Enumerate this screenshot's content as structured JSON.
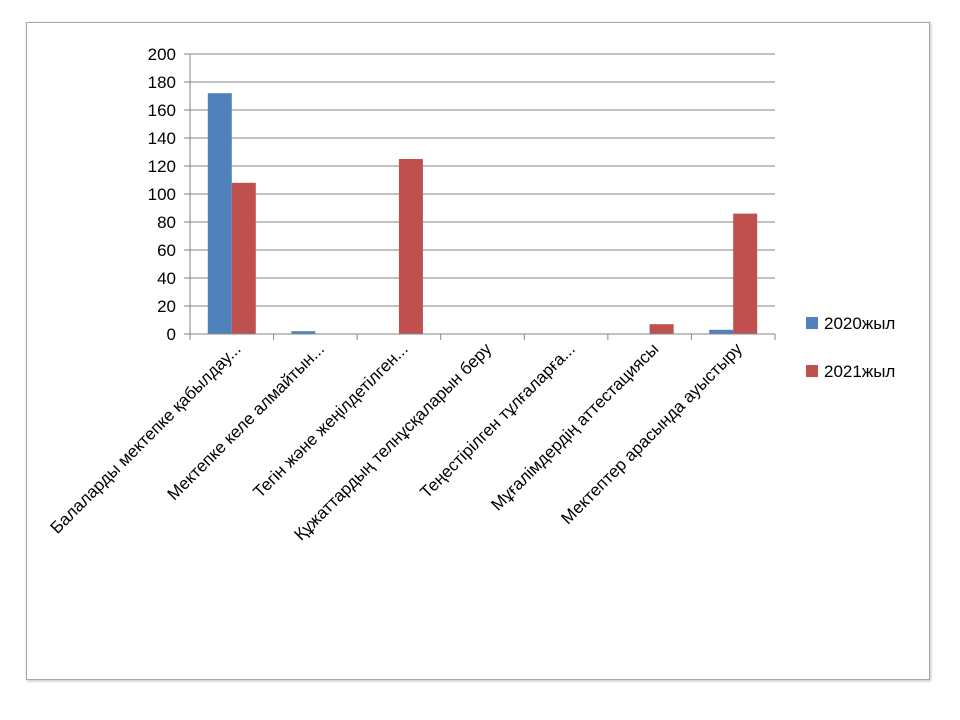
{
  "chart_data": {
    "type": "bar",
    "categories": [
      "Балаларды мектепке қабылдау...",
      "Мектепке келе алмайтын...",
      "Тегін және жеңілдетілген...",
      "Құжаттардың телнұсқаларын беру",
      "Теңестірілген тұлғаларға...",
      "Мұғалімдердің аттестациясы",
      "Мектептер арасында ауыстыру"
    ],
    "series": [
      {
        "name": "2020жыл",
        "color": "#4f81bd",
        "values": [
          172,
          2,
          0,
          0,
          0,
          0,
          3
        ]
      },
      {
        "name": "2021жыл",
        "color": "#c0504d",
        "values": [
          108,
          0,
          125,
          0,
          0,
          7,
          86
        ]
      }
    ],
    "ylim": [
      0,
      200
    ],
    "yticks": [
      0,
      20,
      40,
      60,
      80,
      100,
      120,
      140,
      160,
      180,
      200
    ],
    "grid": true,
    "legend_position": "right",
    "title": "",
    "xlabel": "",
    "ylabel": ""
  }
}
